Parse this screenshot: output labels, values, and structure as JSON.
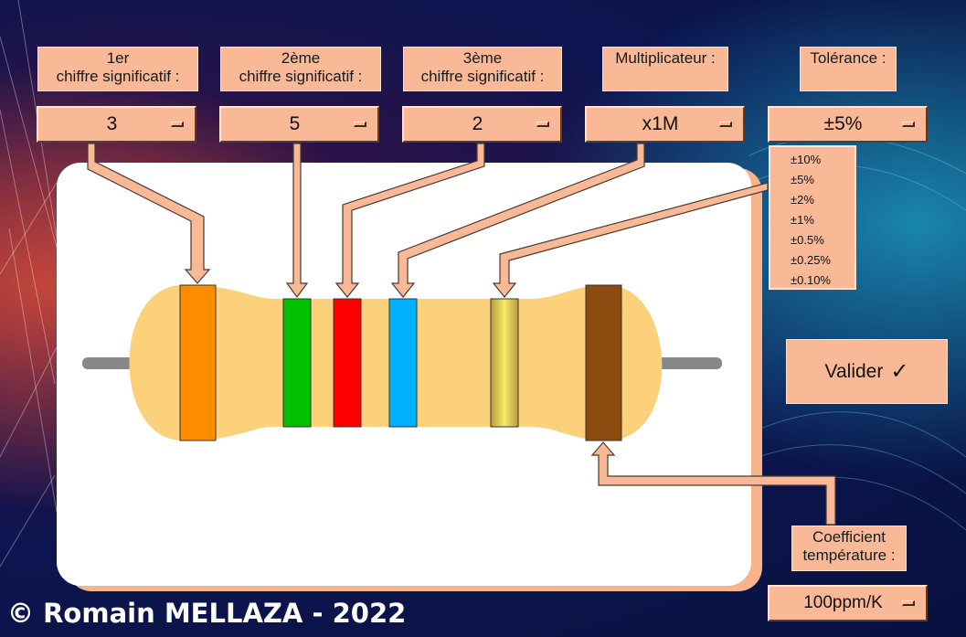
{
  "selectors": [
    {
      "label_line1": "1er",
      "label_line2": "chiffre significatif :",
      "value": "3"
    },
    {
      "label_line1": "2ème",
      "label_line2": "chiffre significatif :",
      "value": "5"
    },
    {
      "label_line1": "3ème",
      "label_line2": "chiffre significatif :",
      "value": "2"
    },
    {
      "label_line1": "Multiplicateur :",
      "label_line2": "",
      "value": "x1M"
    },
    {
      "label_line1": "Tolérance :",
      "label_line2": "",
      "value": "±5%"
    }
  ],
  "tolerance_options": [
    "±10%",
    "±5%",
    "±2%",
    "±1%",
    "±0.5%",
    "±0.25%",
    "±0.10%"
  ],
  "temp_coef": {
    "label_line1": "Coefficient",
    "label_line2": "température :",
    "value": "100ppm/K"
  },
  "validate": {
    "label": "Valider",
    "check": "✓"
  },
  "footer": "© Romain MELLAZA - 2022",
  "bands": {
    "digit1": "#ff8c00",
    "digit2": "#00c000",
    "digit3": "#ff0000",
    "multiplier": "#00b0ff",
    "tolerance": "#d4c070",
    "tempco": "#8b4a0e"
  },
  "colors": {
    "accent": "#f9b896",
    "body": "#fcd17c",
    "panel": "#ffffff"
  }
}
